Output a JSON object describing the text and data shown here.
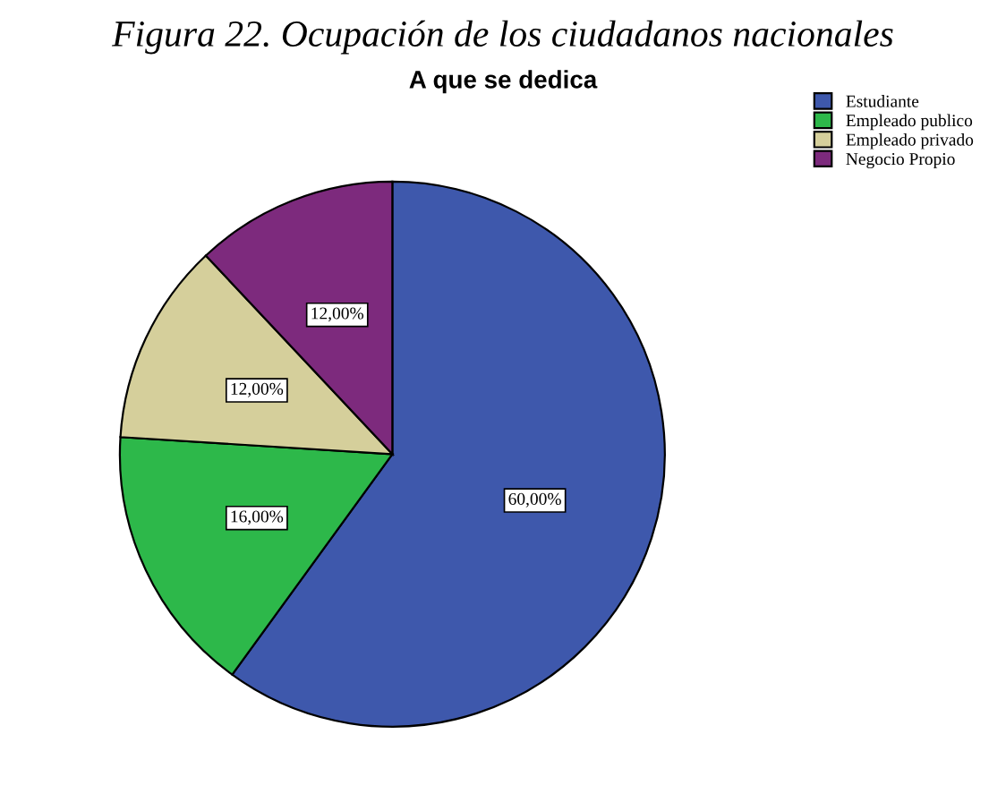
{
  "chart_data": {
    "type": "pie",
    "title": "Figura 22. Ocupación de los ciudadanos nacionales",
    "subtitle": "A que se dedica",
    "categories": [
      "Estudiante",
      "Empleado publico",
      "Empleado privado",
      "Negocio Propio"
    ],
    "values": [
      60,
      16,
      12,
      12
    ],
    "value_labels": [
      "60,00%",
      "16,00%",
      "12,00%",
      "12,00%"
    ],
    "colors": [
      "#3e58ac",
      "#2db84a",
      "#d5cf9b",
      "#7d2a7d"
    ],
    "legend": "top right"
  }
}
